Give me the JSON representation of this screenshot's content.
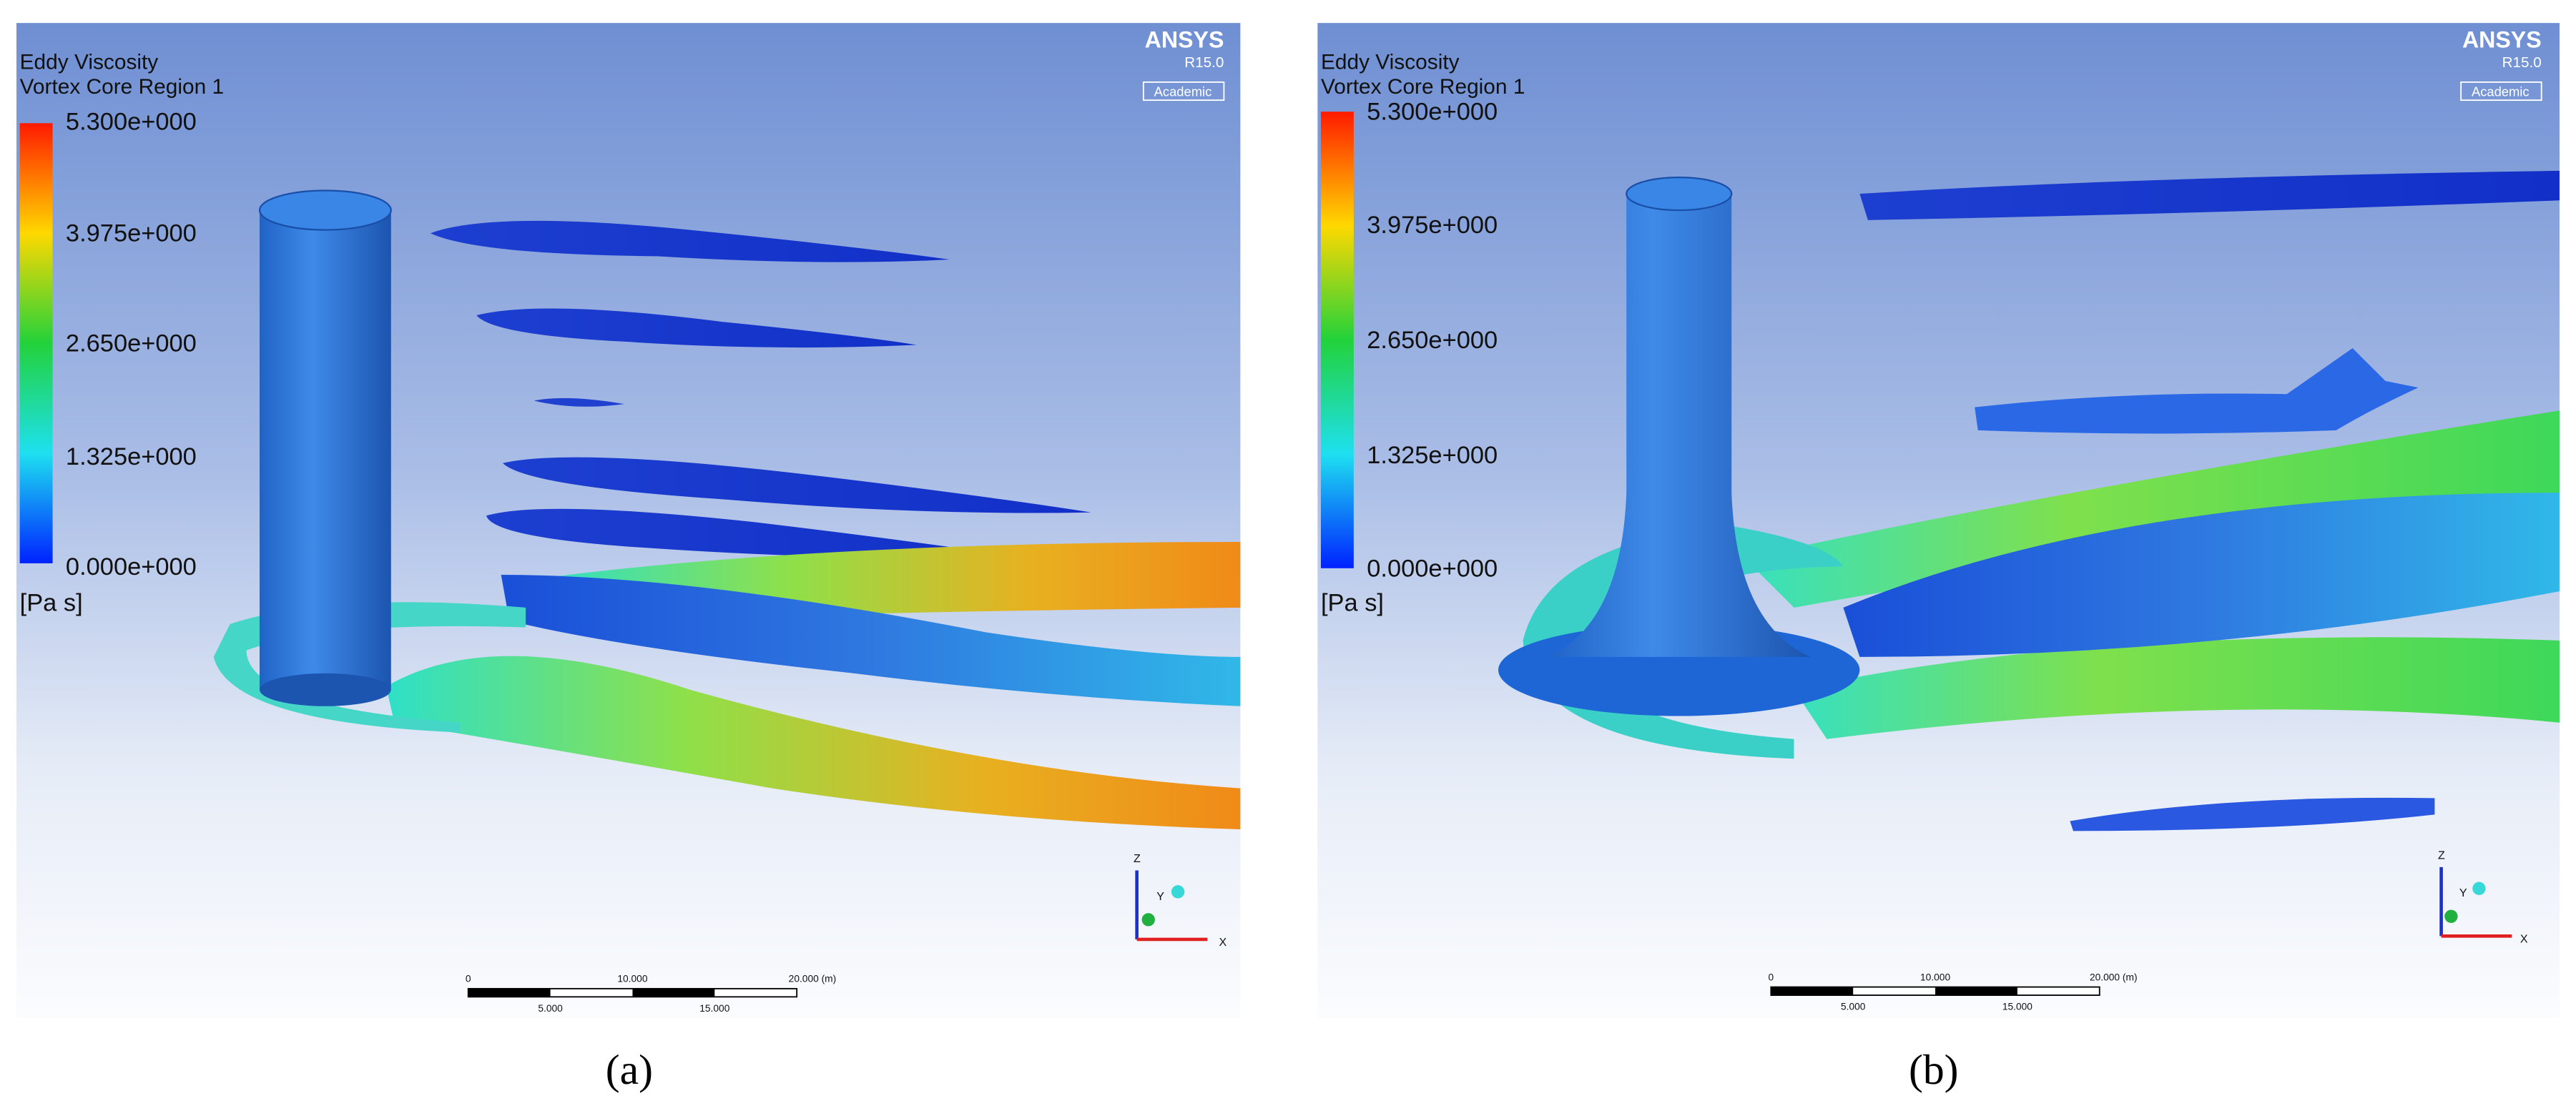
{
  "panels": [
    {
      "legend": {
        "title": "Eddy Viscosity",
        "subtitle": "Vortex Core Region 1",
        "ticks": [
          "5.300e+000",
          "3.975e+000",
          "2.650e+000",
          "1.325e+000",
          "0.000e+000"
        ],
        "unit": "[Pa s]"
      },
      "brand": {
        "name": "ANSYS",
        "version": "R15.0",
        "license": "Academic"
      },
      "scale_bar": {
        "top": [
          "0",
          "10.000",
          "20.000 (m)"
        ],
        "bottom": [
          "5.000",
          "15.000"
        ]
      },
      "axes": {
        "z": "Z",
        "y": "Y",
        "x": "X"
      },
      "caption": "(a)"
    },
    {
      "legend": {
        "title": "Eddy Viscosity",
        "subtitle": "Vortex Core Region 1",
        "ticks": [
          "5.300e+000",
          "3.975e+000",
          "2.650e+000",
          "1.325e+000",
          "0.000e+000"
        ],
        "unit": "[Pa s]"
      },
      "brand": {
        "name": "ANSYS",
        "version": "R15.0",
        "license": "Academic"
      },
      "scale_bar": {
        "top": [
          "0",
          "10.000",
          "20.000 (m)"
        ],
        "bottom": [
          "5.000",
          "15.000"
        ]
      },
      "axes": {
        "z": "Z",
        "y": "Y",
        "x": "X"
      },
      "caption": "(b)"
    }
  ]
}
